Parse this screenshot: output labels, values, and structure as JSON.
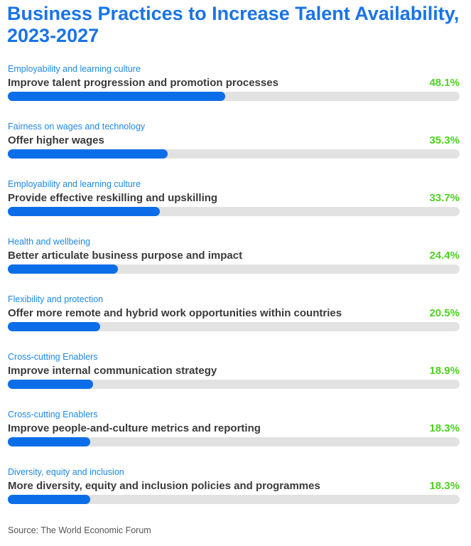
{
  "title": "Business Practices to Increase Talent Availability, 2023-2027",
  "source": "Source: The World Economic Forum",
  "colors": {
    "title": "#1a73e8",
    "category": "#1e88e5",
    "bar_fill": "#0b6ee8",
    "bar_track": "#e2e2e2",
    "value": "#4cd31e"
  },
  "chart_data": {
    "type": "bar",
    "orientation": "horizontal",
    "title": "Business Practices to Increase Talent Availability, 2023-2027",
    "xlim": [
      0,
      100
    ],
    "grid": false,
    "categories": [
      "Improve talent progression and promotion processes",
      "Offer higher wages",
      "Provide effective reskilling and upskilling",
      "Better articulate business purpose and impact",
      "Offer more remote and hybrid work opportunities within countries",
      "Improve internal communication strategy",
      "Improve people-and-culture metrics and reporting",
      "More diversity, equity and inclusion policies and programmes"
    ],
    "groups": [
      "Employability and learning culture",
      "Fairness on wages and technology",
      "Employability and learning culture",
      "Health and wellbeing",
      "Flexibility and protection",
      "Cross-cutting Enablers",
      "Cross-cutting Enablers",
      "Diversity, equity and inclusion"
    ],
    "values": [
      48.1,
      35.3,
      33.7,
      24.4,
      20.5,
      18.9,
      18.3,
      18.3
    ],
    "value_labels": [
      "48.1%",
      "35.3%",
      "33.7%",
      "24.4%",
      "20.5%",
      "18.9%",
      "18.3%",
      "18.3%"
    ]
  }
}
